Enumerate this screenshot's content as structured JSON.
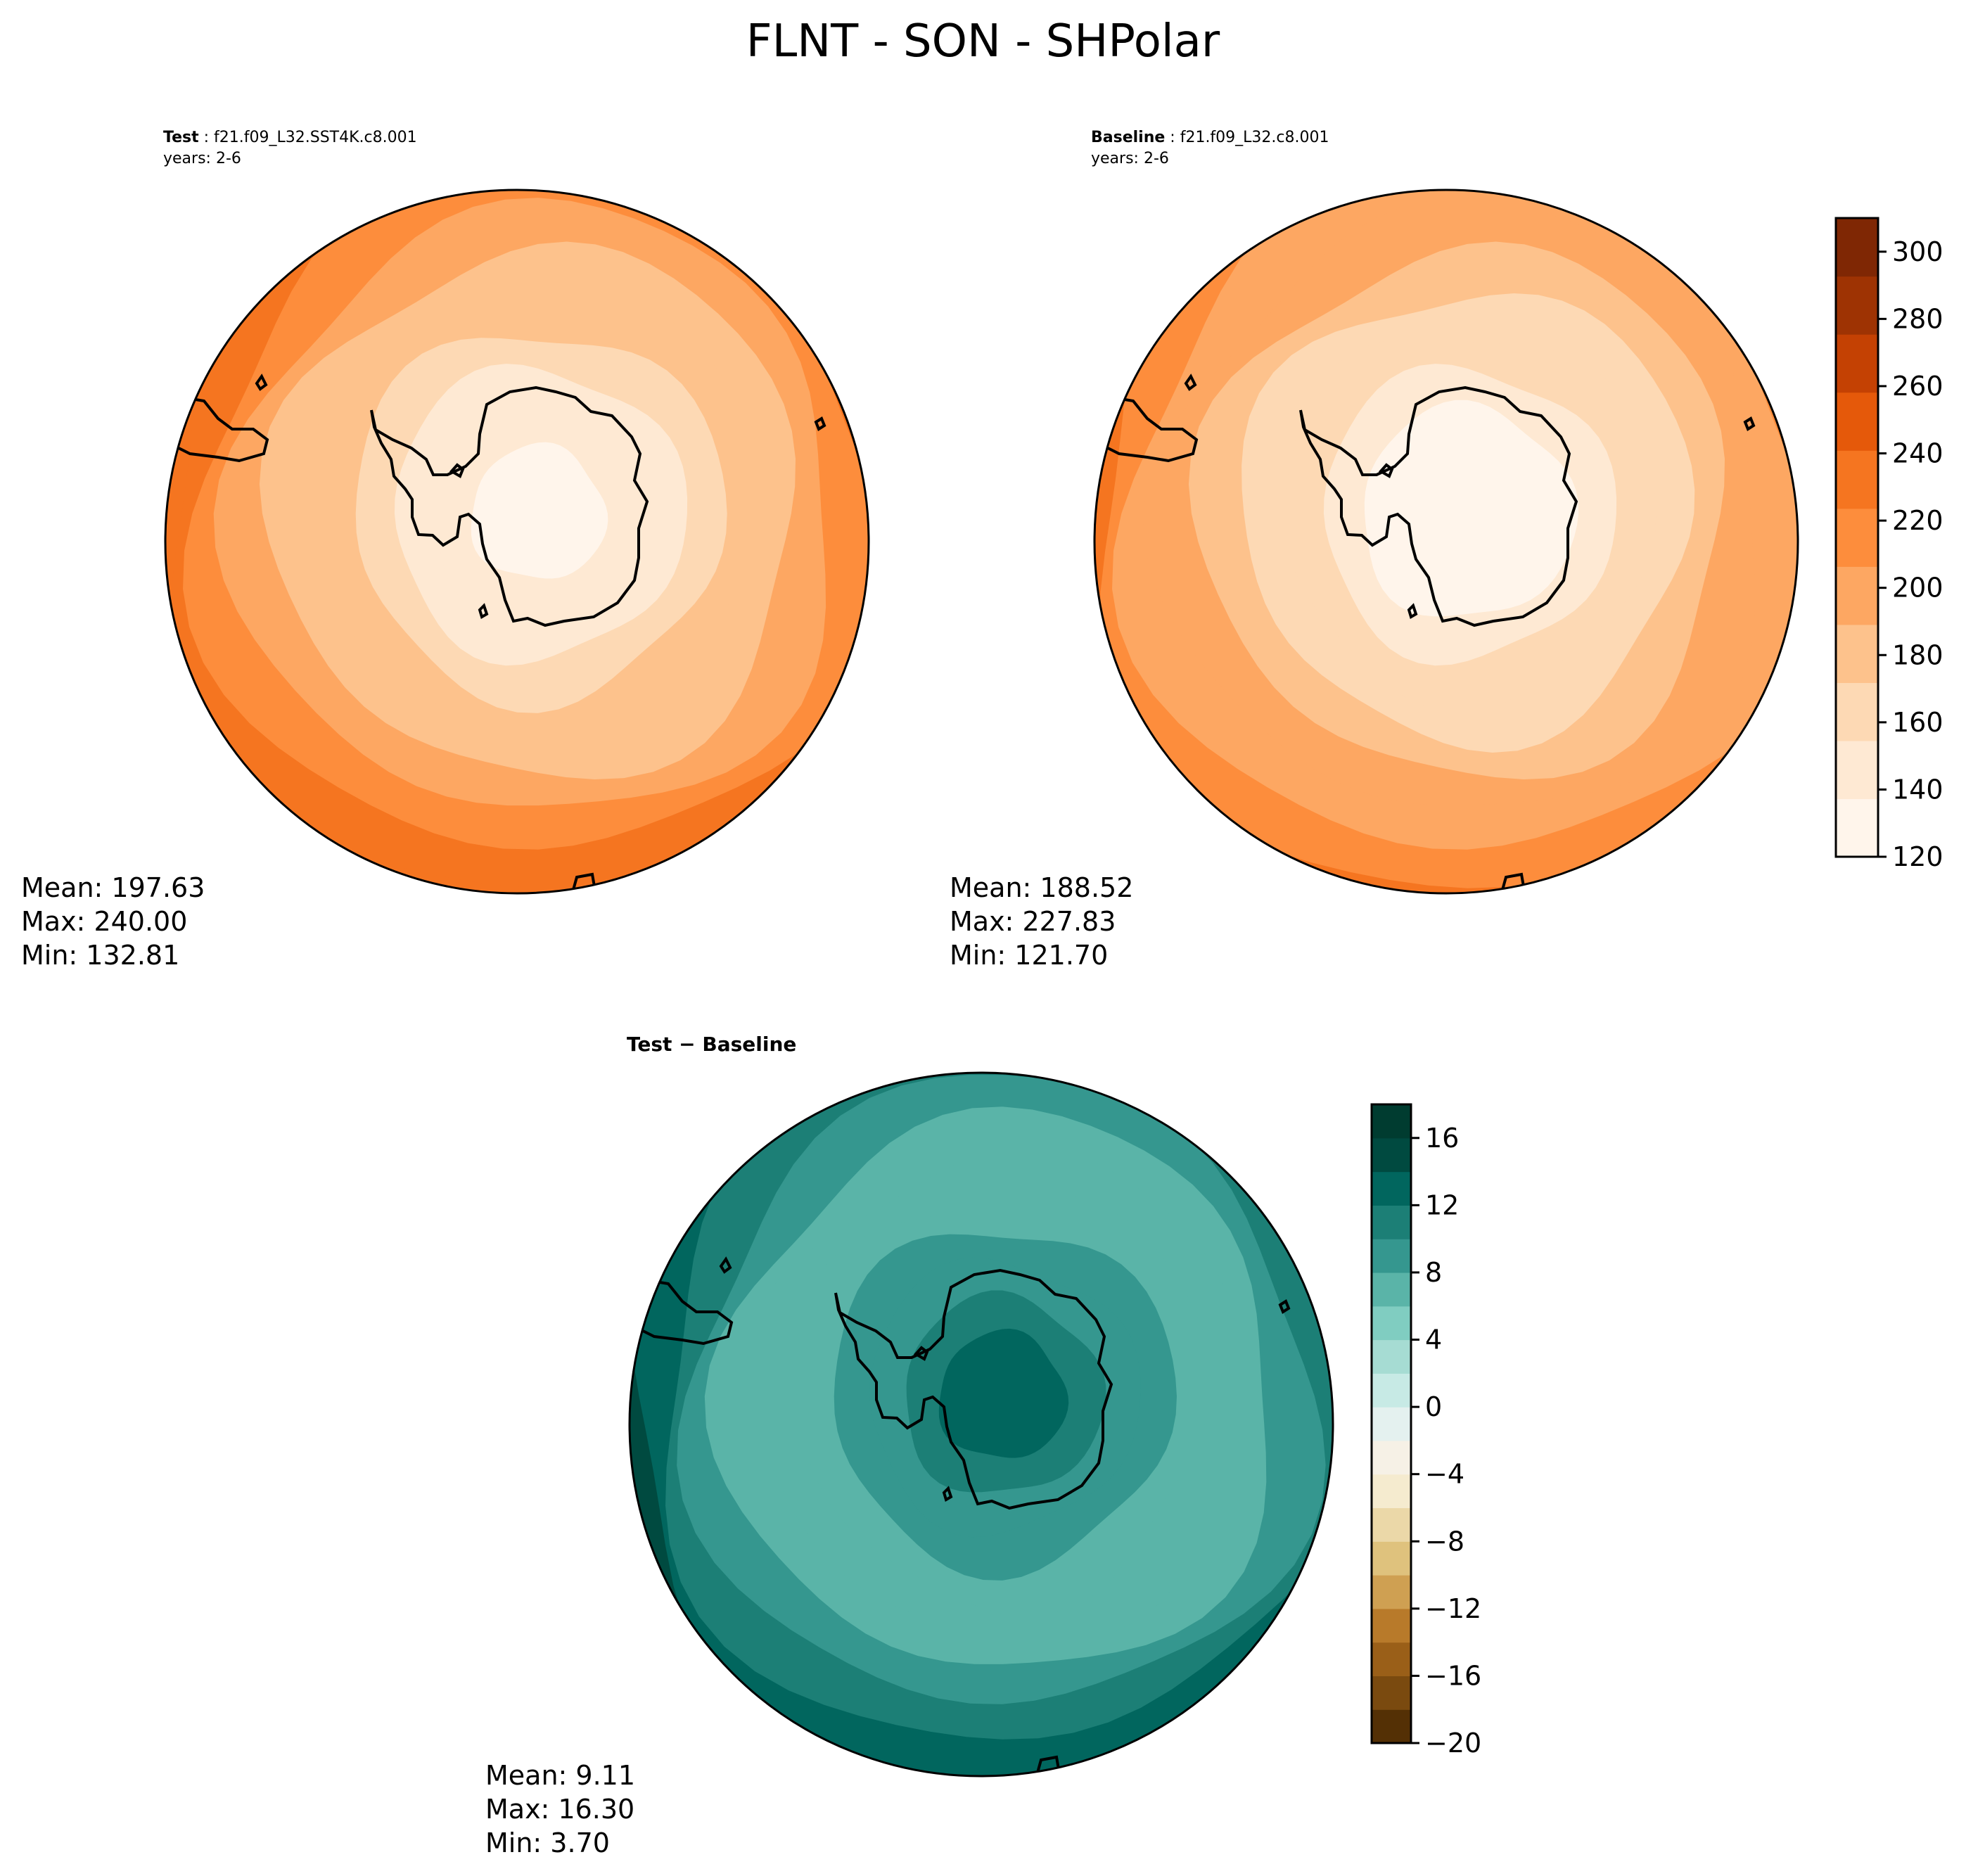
{
  "figure": {
    "title": "FLNT - SON - SHPolar"
  },
  "panels": {
    "test": {
      "case_label": "Test",
      "case_name": "f21.f09_L32.SST4K.c8.001",
      "years": "years: 2-6",
      "stats": {
        "mean": "Mean: 197.63",
        "max": "Max: 240.00",
        "min": "Min: 132.81"
      },
      "levels_from_pole": [
        128,
        140,
        152,
        164,
        176,
        188,
        200,
        212,
        224,
        236
      ]
    },
    "baseline": {
      "case_label": "Baseline",
      "case_name": "f21.f09_L32.c8.001",
      "years": "years: 2-6",
      "stats": {
        "mean": "Mean: 188.52",
        "max": "Max: 227.83",
        "min": "Min: 121.70"
      },
      "levels_from_pole": [
        124,
        134,
        144,
        156,
        168,
        180,
        192,
        204,
        214,
        224
      ]
    },
    "difference": {
      "title": "Test − Baseline",
      "stats": {
        "mean": "Mean:  9.11",
        "max": "Max: 16.30",
        "min": "Min:  3.70"
      },
      "levels_from_pole": [
        12.5,
        11,
        9.5,
        8,
        7,
        6.5,
        7.5,
        9,
        10.5,
        12.5,
        14.5
      ]
    }
  },
  "colorbars": {
    "main": {
      "ticks": [
        "120",
        "140",
        "160",
        "180",
        "200",
        "220",
        "240",
        "260",
        "280",
        "300"
      ],
      "range": [
        120,
        310
      ],
      "colors": [
        "#fff5eb",
        "#fee9d3",
        "#fdd9b4",
        "#fdc28c",
        "#fda762",
        "#fd8d3c",
        "#f57520",
        "#e5590a",
        "#c44103",
        "#9e3303",
        "#7f2704"
      ]
    },
    "diff": {
      "ticks": [
        "−20",
        "−16",
        "−12",
        "−8",
        "−4",
        "0",
        "4",
        "8",
        "12",
        "16"
      ],
      "range": [
        -20,
        18
      ],
      "colors": [
        "#543005",
        "#7a4a0f",
        "#9a5f18",
        "#b87a2a",
        "#cfa052",
        "#dfc27d",
        "#ebd8a8",
        "#f5ebcf",
        "#f6f1e6",
        "#e4f1ef",
        "#c7eae5",
        "#a6dcd3",
        "#80cdc1",
        "#5ab4a8",
        "#35978f",
        "#1c7f76",
        "#01665e",
        "#004a40",
        "#003c30"
      ]
    }
  }
}
